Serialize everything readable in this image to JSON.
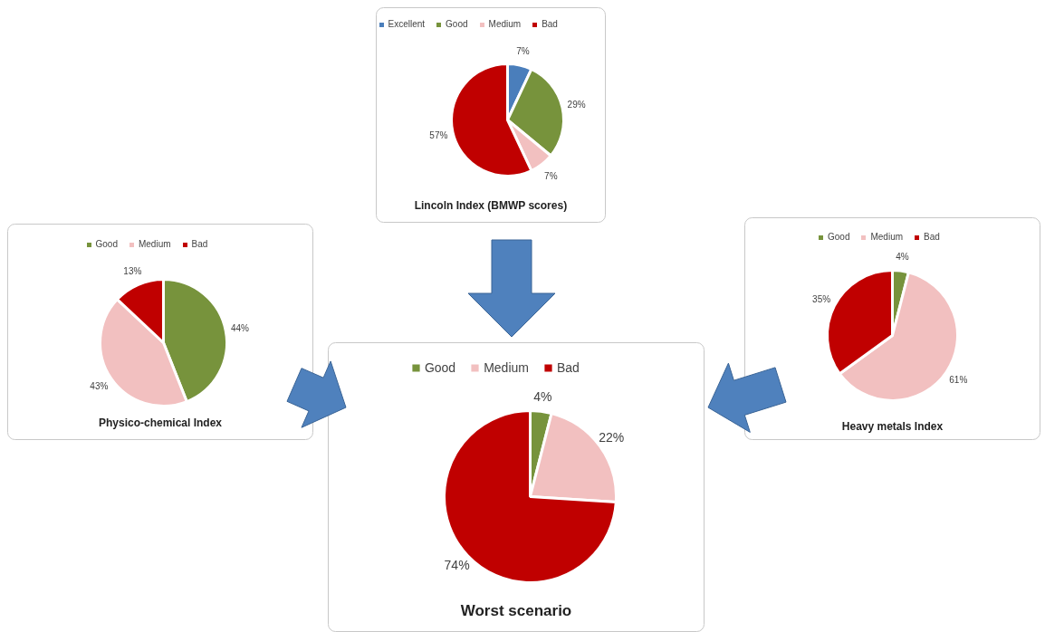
{
  "chart_data": [
    {
      "type": "pie",
      "title": "Lincoln Index (BMWP scores)",
      "categories": [
        "Excellent",
        "Good",
        "Medium",
        "Bad"
      ],
      "values": [
        7,
        29,
        7,
        57
      ],
      "value_labels": [
        "7%",
        "29%",
        "7%",
        "57%"
      ],
      "colors": [
        "#4a7ebb",
        "#77933c",
        "#f2c0c0",
        "#c00000"
      ],
      "legend": "top"
    },
    {
      "type": "pie",
      "title": "Physico-chemical Index",
      "categories": [
        "Good",
        "Medium",
        "Bad"
      ],
      "values": [
        44,
        43,
        13
      ],
      "value_labels": [
        "44%",
        "43%",
        "13%"
      ],
      "colors": [
        "#77933c",
        "#f2c0c0",
        "#c00000"
      ],
      "legend": "top"
    },
    {
      "type": "pie",
      "title": "Worst scenario",
      "categories": [
        "Good",
        "Medium",
        "Bad"
      ],
      "values": [
        4,
        22,
        74
      ],
      "value_labels": [
        "4%",
        "22%",
        "74%"
      ],
      "colors": [
        "#77933c",
        "#f2c0c0",
        "#c00000"
      ],
      "legend": "top"
    },
    {
      "type": "pie",
      "title": "Heavy metals Index",
      "categories": [
        "Good",
        "Medium",
        "Bad"
      ],
      "values": [
        4,
        61,
        35
      ],
      "value_labels": [
        "4%",
        "61%",
        "35%"
      ],
      "colors": [
        "#77933c",
        "#f2c0c0",
        "#c00000"
      ],
      "legend": "top"
    }
  ]
}
